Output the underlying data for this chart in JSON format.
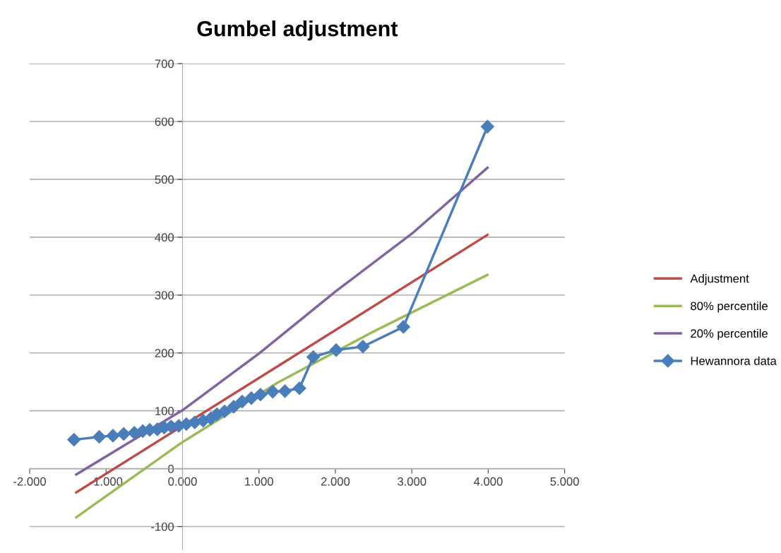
{
  "chart_data": {
    "type": "line",
    "title": "Gumbel adjustment",
    "xlim": [
      -2,
      5
    ],
    "ylim": [
      -140,
      700
    ],
    "xticks": [
      {
        "value": -2,
        "label": "-2.000"
      },
      {
        "value": -1,
        "label": "-1.000"
      },
      {
        "value": 0,
        "label": "0.000"
      },
      {
        "value": 1,
        "label": "1.000"
      },
      {
        "value": 2,
        "label": "2.000"
      },
      {
        "value": 3,
        "label": "3.000"
      },
      {
        "value": 4,
        "label": "4.000"
      },
      {
        "value": 5,
        "label": "5.000"
      }
    ],
    "yticks": [
      -100,
      0,
      100,
      200,
      300,
      400,
      500,
      600,
      700
    ],
    "grid": "y",
    "legend": "right",
    "series": [
      {
        "name": "Adjustment",
        "color": "#be4b48",
        "marker": "none",
        "x": [
          -1.39,
          3.99
        ],
        "values": [
          -41,
          404
        ]
      },
      {
        "name": "80% percentile",
        "color": "#9bbb59",
        "marker": "none",
        "x": [
          -1.39,
          0,
          1.25,
          2.5,
          3.99
        ],
        "values": [
          -84,
          46,
          149,
          237,
          335
        ]
      },
      {
        "name": "20% percentile",
        "color": "#8064a2",
        "marker": "none",
        "x": [
          -1.39,
          0,
          1,
          2,
          3,
          3.99
        ],
        "values": [
          -10,
          101,
          199,
          306,
          406,
          520
        ]
      },
      {
        "name": "Hewannora data",
        "color": "#4a7ebb",
        "marker": "diamond",
        "x": [
          -1.42,
          -1.09,
          -0.91,
          -0.77,
          -0.63,
          -0.52,
          -0.43,
          -0.33,
          -0.24,
          -0.15,
          -0.05,
          0.05,
          0.16,
          0.27,
          0.37,
          0.45,
          0.55,
          0.67,
          0.78,
          0.9,
          1.02,
          1.18,
          1.34,
          1.53,
          1.71,
          2.01,
          2.36,
          2.89,
          3.99
        ],
        "values": [
          50,
          55,
          57,
          60,
          62,
          65,
          67,
          68,
          71,
          73,
          74,
          77,
          80,
          83,
          87,
          94,
          99,
          107,
          116,
          122,
          128,
          133,
          134,
          139,
          193,
          205,
          211,
          245,
          591
        ]
      }
    ]
  }
}
